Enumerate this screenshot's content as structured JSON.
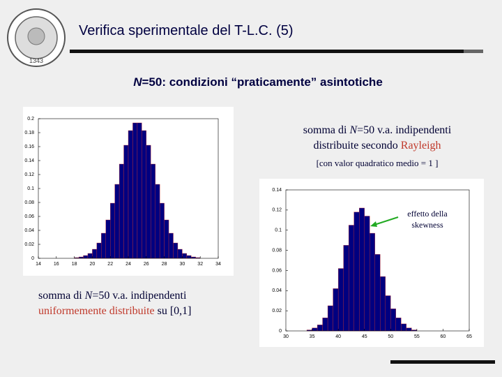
{
  "header": {
    "title": "Verifica sperimentale del T-L.C. (5)",
    "logo_text": "1343"
  },
  "subtitle": {
    "italic": "N",
    "text": "=50: condizioni “praticamente” asintotiche"
  },
  "caption_right": {
    "line1_a": "somma di",
    "line1_n": "N",
    "line1_b": "=50 v.a. indipendenti",
    "line2_a": "distribuite secondo",
    "line2_red": "Rayleigh",
    "note": "[con valor quadratico medio = 1 ]"
  },
  "caption_left": {
    "line1_a": "somma di",
    "line1_n": "N",
    "line1_b": "=50 v.a. indipendenti",
    "line2_red": "uniformemente distribuite",
    "line2_b": "su [0,1]"
  },
  "annotation": {
    "lines": [
      "effetto della",
      "skewness"
    ]
  },
  "chart_data": [
    {
      "type": "histogram",
      "color": "#000080",
      "bins": [
        18,
        18.5,
        19,
        19.5,
        20,
        20.5,
        21,
        21.5,
        22,
        22.5,
        23,
        23.5,
        24,
        24.5,
        25,
        25.5,
        26,
        26.5,
        27,
        27.5,
        28,
        28.5,
        29,
        29.5,
        30,
        30.5,
        31,
        31.5,
        32
      ],
      "values": [
        0.001,
        0.002,
        0.004,
        0.007,
        0.013,
        0.022,
        0.036,
        0.055,
        0.079,
        0.106,
        0.135,
        0.162,
        0.183,
        0.194,
        0.194,
        0.183,
        0.162,
        0.135,
        0.106,
        0.079,
        0.055,
        0.036,
        0.022,
        0.013,
        0.007,
        0.004,
        0.002,
        0.001
      ],
      "xlim": [
        14,
        34
      ],
      "xticks": [
        14,
        16,
        18,
        20,
        22,
        24,
        26,
        28,
        30,
        32,
        34
      ],
      "ylim": [
        0,
        0.2
      ],
      "yticks": [
        0,
        0.02,
        0.04,
        0.06,
        0.08,
        0.1,
        0.12,
        0.14,
        0.16,
        0.18,
        0.2
      ]
    },
    {
      "type": "histogram",
      "color": "#000080",
      "bins": [
        34,
        35,
        36,
        37,
        38,
        39,
        40,
        41,
        42,
        43,
        44,
        45,
        46,
        47,
        48,
        49,
        50,
        51,
        52,
        53,
        54,
        55
      ],
      "values": [
        0.001,
        0.003,
        0.006,
        0.013,
        0.025,
        0.042,
        0.062,
        0.085,
        0.105,
        0.118,
        0.122,
        0.114,
        0.097,
        0.076,
        0.054,
        0.035,
        0.022,
        0.013,
        0.007,
        0.003,
        0.001
      ],
      "xlim": [
        30,
        65
      ],
      "xticks": [
        30,
        35,
        40,
        45,
        50,
        55,
        60,
        65
      ],
      "ylim": [
        0,
        0.14
      ],
      "yticks": [
        0,
        0.02,
        0.04,
        0.06,
        0.08,
        0.1,
        0.12,
        0.14
      ]
    }
  ]
}
